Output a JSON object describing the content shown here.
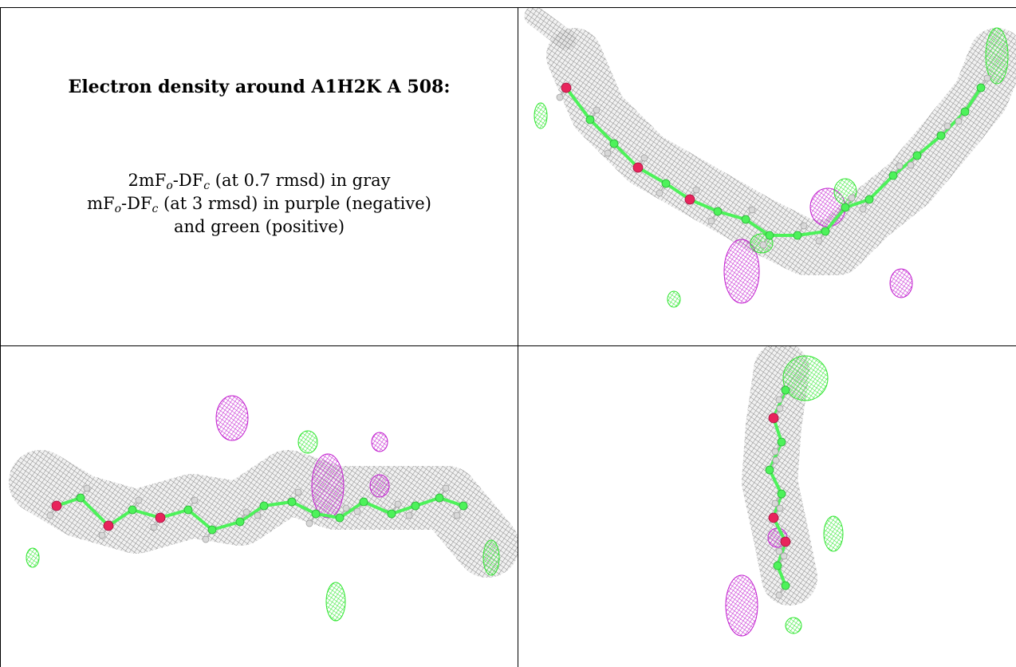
{
  "caption": {
    "title": "Electron density around A1H2K A 508:",
    "line1": {
      "a": "2mF",
      "o": "o",
      "b": "-DF",
      "c": "c",
      "tail": " (at 0.7 rmsd) in gray"
    },
    "line2": {
      "a": "mF",
      "o": "o",
      "b": "-DF",
      "c": "c",
      "tail": " (at 3 rmsd) in purple (negative)"
    },
    "line3": "and green (positive)"
  },
  "colors": {
    "mesh_2fofc": "#8a8a8a",
    "diff_negative": "#c21fcf",
    "diff_positive": "#2ee62e",
    "carbon": "#4df25a",
    "oxygen": "#e8245c",
    "hydrogen": "#d8d8d8"
  },
  "panels": [
    {
      "name": "view-top-right"
    },
    {
      "name": "view-bottom-left"
    },
    {
      "name": "view-bottom-right"
    }
  ]
}
